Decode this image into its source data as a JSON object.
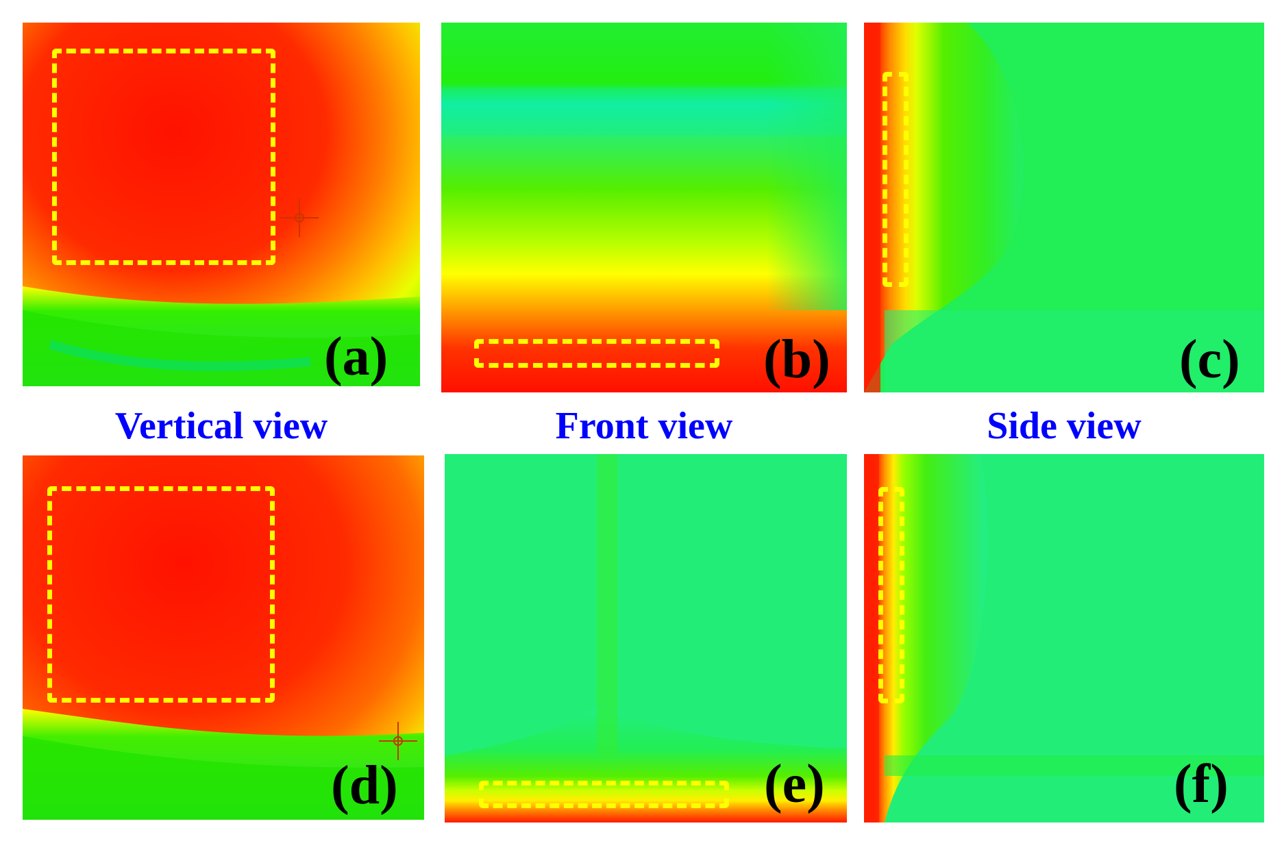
{
  "view_labels": {
    "vertical": "Vertical view",
    "front": "Front view",
    "side": "Side view"
  },
  "panels": [
    {
      "tag": "(a)"
    },
    {
      "tag": "(b)"
    },
    {
      "tag": "(c)"
    },
    {
      "tag": "(d)"
    },
    {
      "tag": "(e)"
    },
    {
      "tag": "(f)"
    }
  ],
  "colors": {
    "hot": "#ff1a00",
    "warm": "#ff8c00",
    "mid": "#ffff00",
    "cool": "#22ee00",
    "cold": "#00ee99",
    "highlight_box": "#ffff00",
    "label_text": "#0000ff"
  }
}
